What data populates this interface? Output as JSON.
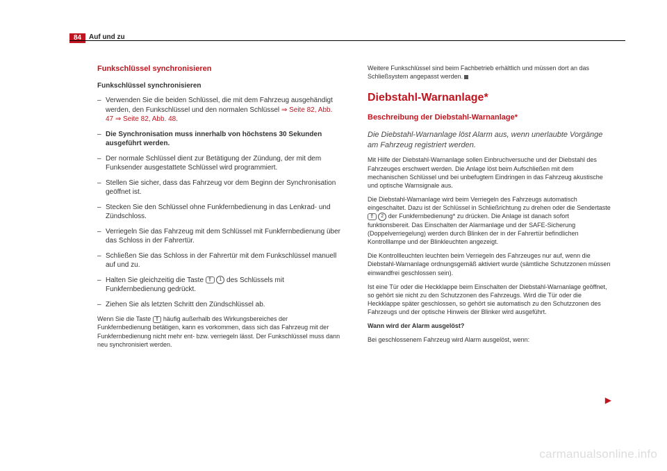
{
  "page": {
    "number": "84",
    "header": "Auf und zu"
  },
  "left": {
    "section_title": "Funkschlüssel synchronisieren",
    "sub_bold": "Funkschlüssel synchronisieren",
    "step1a": "Verwenden Sie die beiden Schlüssel, die mit dem Fahrzeug ausgehändigt werden, den Funkschlüssel und den normalen Schlüssel ",
    "step1_link1": "⇒ Seite 82, Abb. 47",
    "step1_link2": " ⇒ Seite 82, Abb. 48",
    "step1_dot": ".",
    "step2": "Die Synchronisation muss innerhalb von höchstens 30 Sekunden ausgeführt werden.",
    "step3": "Der normale Schlüssel dient zur Betätigung der Zündung, der mit dem Funksender ausgestattete Schlüssel wird programmiert.",
    "step4": "Stellen Sie sicher, dass das Fahrzeug vor dem Beginn der Synchronisation geöffnet ist.",
    "step5": "Stecken Sie den Schlüssel ohne Funkfernbedienung in das Lenkrad- und Zündschloss.",
    "step6": "Verriegeln Sie das Fahrzeug mit dem Schlüssel mit Funkfernbedienung über das Schloss in der Fahrertür.",
    "step7": "Schließen Sie das Schloss in der Fahrertür mit dem Funkschlüssel manuell auf und zu.",
    "step8a": "Halten Sie gleichzeitig die Taste ",
    "step8_icon": "⇑",
    "step8_num": "1",
    "step8b": " des Schlüssels mit Funkfernbedienung gedrückt.",
    "step9": "Ziehen Sie als letzten Schritt den Zündschlüssel ab.",
    "footnote_a": "Wenn Sie die Taste ",
    "footnote_icon": "⇑",
    "footnote_b": " häufig außerhalb des Wirkungsbereiches der Funkfernbedienung betätigen, kann es vorkommen, dass sich das Fahrzeug mit der Funkfernbedienung nicht mehr ent- bzw. verriegeln lässt. Der Funkschlüssel muss dann neu synchronisiert werden."
  },
  "right": {
    "top_para": "Weitere Funkschlüssel sind beim Fachbetrieb erhältlich und müssen dort an das Schließsystem angepasst werden.",
    "h2": "Diebstahl-Warnanlage*",
    "sub_red": "Beschreibung der Diebstahl-Warnanlage*",
    "lead_italic": "Die Diebstahl-Warnanlage löst Alarm aus, wenn unerlaubte Vorgänge am Fahrzeug registriert werden.",
    "p1": "Mit Hilfe der Diebstahl-Warnanlage sollen Einbruchversuche und der Diebstahl des Fahrzeuges erschwert werden. Die Anlage löst beim Aufschließen mit dem mechanischen Schlüssel und bei unbefugtem Eindringen in das Fahrzeug akustische und optische Warnsignale aus.",
    "p2a": "Die Diebstahl-Warnanlage wird beim Verriegeln des Fahrzeugs automatisch eingeschaltet. Dazu ist der Schlüssel in Schließrichtung zu drehen oder die Sendertaste ",
    "p2_icon": "⇑",
    "p2_num": "2",
    "p2b": " der Funkfernbedienung* zu drücken. Die Anlage ist danach sofort funktionsbereit. Das Einschalten der Alarmanlage und der SAFE-Sicherung (Doppelverriegelung) werden durch Blinken der in der Fahrertür befindlichen Kontrolllampe und der Blinkleuchten angezeigt.",
    "p3": "Die Kontrollleuchten leuchten beim Verriegeln des Fahrzeuges nur auf, wenn die Diebstahl-Warnanlage ordnungsgemäß aktiviert wurde (sämtliche Schutzzonen müssen einwandfrei geschlossen sein).",
    "p4": "Ist eine Tür oder die Heckklappe beim Einschalten der Diebstahl-Warnanlage geöffnet, so gehört sie nicht zu den Schutzzonen des Fahrzeugs. Wird die Tür oder die Heckklappe später geschlossen, so gehört sie automatisch zu den Schutzzonen des Fahrzeugs und der optische Hinweis der Blinker wird ausgeführt.",
    "q_bold": "Wann wird der Alarm ausgelöst?",
    "q_line": "Bei geschlossenem Fahrzeug wird Alarm ausgelöst, wenn:"
  },
  "watermark": "carmanualsonline.info",
  "colors": {
    "accent": "#c0151f",
    "text": "#333333",
    "watermark": "#dddddd",
    "bg": "#ffffff"
  }
}
